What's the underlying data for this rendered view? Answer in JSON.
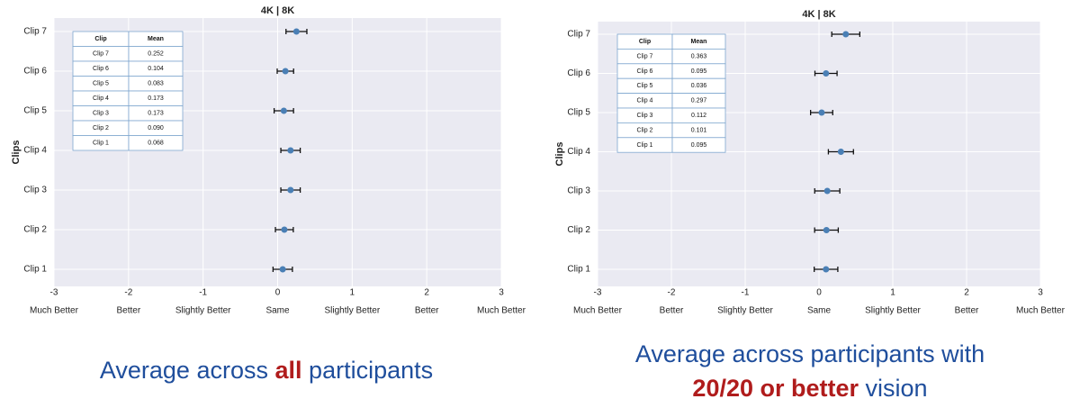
{
  "chart_data": [
    {
      "type": "dot",
      "title": "4K | 8K",
      "y_label": "Clips",
      "categories": [
        "Clip 1",
        "Clip 2",
        "Clip 3",
        "Clip 4",
        "Clip 5",
        "Clip 6",
        "Clip 7"
      ],
      "values": [
        0.068,
        0.09,
        0.173,
        0.173,
        0.083,
        0.104,
        0.252
      ],
      "errors": [
        0.13,
        0.12,
        0.13,
        0.13,
        0.13,
        0.11,
        0.14
      ],
      "color": "#4a7fb5",
      "xlim": [
        -3,
        3
      ],
      "xticks": [
        -3,
        -2,
        -1,
        0,
        1,
        2,
        3
      ],
      "scale_labels": [
        "Much Better",
        "Better",
        "Slightly Better",
        "Same",
        "Slightly Better",
        "Better",
        "Much Better"
      ],
      "grid": true,
      "table": {
        "header": [
          "Clip",
          "Mean"
        ],
        "rows": [
          [
            "Clip 7",
            "0.252"
          ],
          [
            "Clip 6",
            "0.104"
          ],
          [
            "Clip 5",
            "0.083"
          ],
          [
            "Clip 4",
            "0.173"
          ],
          [
            "Clip 3",
            "0.173"
          ],
          [
            "Clip 2",
            "0.090"
          ],
          [
            "Clip 1",
            "0.068"
          ]
        ]
      },
      "caption": [
        "Average across",
        "all",
        "participants"
      ]
    },
    {
      "type": "dot",
      "title": "4K | 8K",
      "y_label": "Clips",
      "categories": [
        "Clip 1",
        "Clip 2",
        "Clip 3",
        "Clip 4",
        "Clip 5",
        "Clip 6",
        "Clip 7"
      ],
      "values": [
        0.095,
        0.101,
        0.112,
        0.297,
        0.036,
        0.095,
        0.363
      ],
      "errors": [
        0.16,
        0.16,
        0.17,
        0.17,
        0.15,
        0.15,
        0.19
      ],
      "color": "#4a7fb5",
      "xlim": [
        -3,
        3
      ],
      "xticks": [
        -3,
        -2,
        -1,
        0,
        1,
        2,
        3
      ],
      "scale_labels": [
        "Much Better",
        "Better",
        "Slightly Better",
        "Same",
        "Slightly Better",
        "Better",
        "Much Better"
      ],
      "grid": true,
      "table": {
        "header": [
          "Clip",
          "Mean"
        ],
        "rows": [
          [
            "Clip 7",
            "0.363"
          ],
          [
            "Clip 6",
            "0.095"
          ],
          [
            "Clip 5",
            "0.036"
          ],
          [
            "Clip 4",
            "0.297"
          ],
          [
            "Clip 3",
            "0.112"
          ],
          [
            "Clip 2",
            "0.101"
          ],
          [
            "Clip 1",
            "0.095"
          ]
        ]
      },
      "caption": [
        "Average across participants with",
        "20/20 or better",
        "vision"
      ]
    }
  ]
}
